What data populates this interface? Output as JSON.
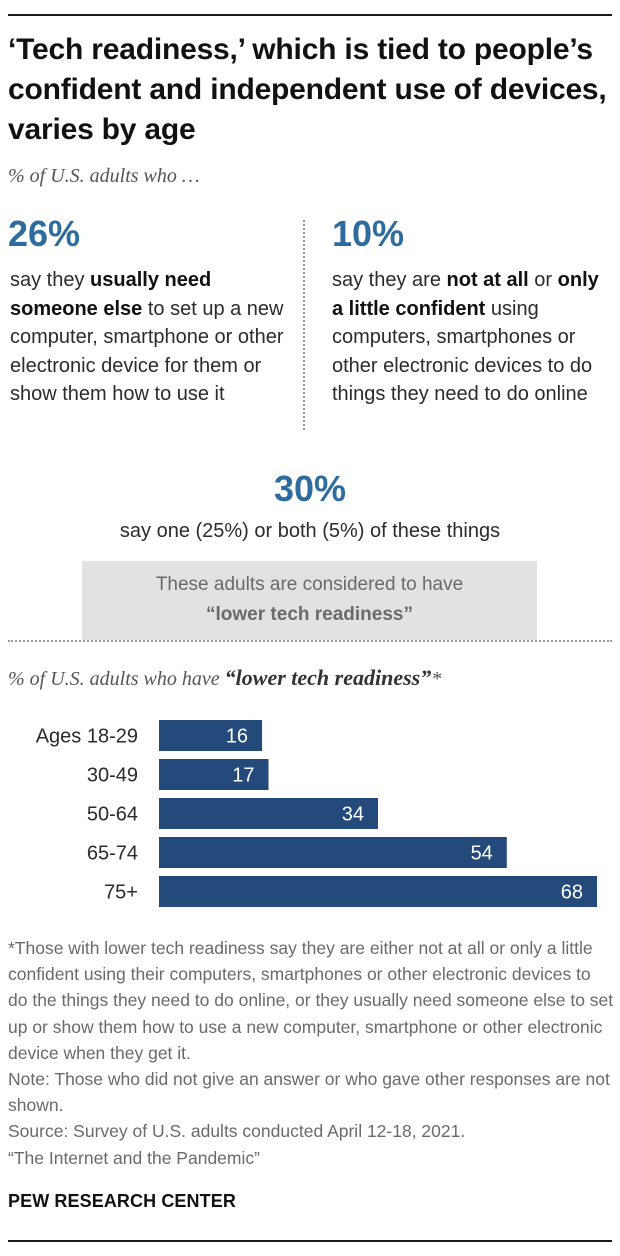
{
  "title": "‘Tech readiness,’ which is tied to people’s confident and independent use of devices, varies by age",
  "subtitle": "% of U.S. adults who …",
  "left_block": {
    "pct": "26%",
    "pre": "say they ",
    "bold": "usually need someone else",
    "post": " to set up a new computer, smartphone or other electronic device for them or show them how to use it"
  },
  "right_block": {
    "pct": "10%",
    "pre": "say they are ",
    "bold1": "not at all",
    "mid": " or ",
    "bold2": "only a little confident",
    "post": " using computers, smartphones or other electronic devices to do things they need to do online"
  },
  "combined": {
    "pct": "30%",
    "desc": "say one (25%) or both (5%) of these things",
    "box_line1": "These adults are considered to have",
    "box_line2": "“lower tech readiness”"
  },
  "chart_subtitle": {
    "pre": "% of U.S. adults who have ",
    "bold": "“lower tech readiness”",
    "post": "*"
  },
  "colors": {
    "bar": "#234a7a",
    "accent": "#2e6b9e"
  },
  "chart_data": {
    "type": "bar",
    "orientation": "horizontal",
    "categories": [
      "Ages 18-29",
      "30-49",
      "50-64",
      "65-74",
      "75+"
    ],
    "values": [
      16,
      17,
      34,
      54,
      68
    ],
    "xlim": [
      0,
      68
    ]
  },
  "footnote": {
    "star": "*Those with lower tech readiness say they are either not at all or only a little confident using their computers, smartphones or other electronic devices to do the things they need to do online, or they usually need someone else to set up or show them how to use a new computer, smartphone or other electronic device when they get it.",
    "note": "Note: Those who did not give an answer or who gave other responses are not shown.",
    "source": "Source: Survey of U.S. adults conducted April 12-18, 2021.",
    "report": "“The Internet and the Pandemic”"
  },
  "brand": "PEW RESEARCH CENTER"
}
